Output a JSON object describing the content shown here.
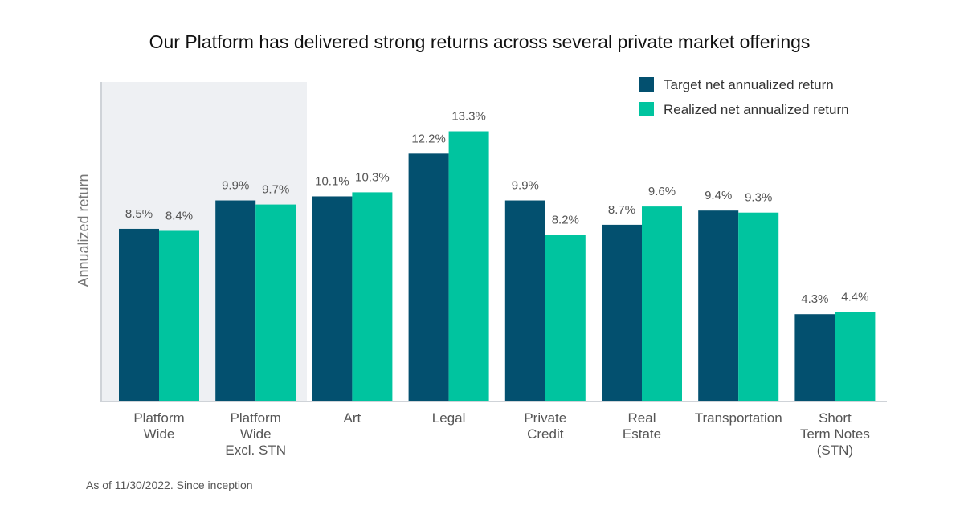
{
  "chart_data": {
    "type": "bar",
    "title": "Our Platform has delivered strong returns across several private market offerings",
    "xlabel": "",
    "ylabel": "Annualized return",
    "ylim": [
      0,
      14
    ],
    "grid": false,
    "legend_position": "top-right",
    "highlighted_categories": [
      "Platform Wide",
      "Platform Wide Excl. STN"
    ],
    "categories": [
      "Platform Wide",
      "Platform Wide Excl. STN",
      "Art",
      "Legal",
      "Private Credit",
      "Real Estate",
      "Transportation",
      "Short Term Notes (STN)"
    ],
    "category_label_lines": [
      [
        "Platform",
        "Wide"
      ],
      [
        "Platform",
        "Wide",
        "Excl. STN"
      ],
      [
        "Art"
      ],
      [
        "Legal"
      ],
      [
        "Private",
        "Credit"
      ],
      [
        "Real",
        "Estate"
      ],
      [
        "Transportation"
      ],
      [
        "Short",
        "Term Notes",
        "(STN)"
      ]
    ],
    "series": [
      {
        "name": "Target net annualized return",
        "color": "#03506f",
        "values": [
          8.5,
          9.9,
          10.1,
          12.2,
          9.9,
          8.7,
          9.4,
          4.3
        ],
        "labels": [
          "8.5%",
          "9.9%",
          "10.1%",
          "12.2%",
          "9.9%",
          "8.7%",
          "9.4%",
          "4.3%"
        ]
      },
      {
        "name": "Realized net annualized return",
        "color": "#00c49f",
        "values": [
          8.4,
          9.7,
          10.3,
          13.3,
          8.2,
          9.6,
          9.3,
          4.4
        ],
        "labels": [
          "8.4%",
          "9.7%",
          "10.3%",
          "13.3%",
          "8.2%",
          "9.6%",
          "9.3%",
          "4.4%"
        ]
      }
    ],
    "footnote": "As of 11/30/2022. Since inception"
  },
  "colors": {
    "highlight_band": "#eef0f3",
    "axis": "#cfd3d8"
  }
}
